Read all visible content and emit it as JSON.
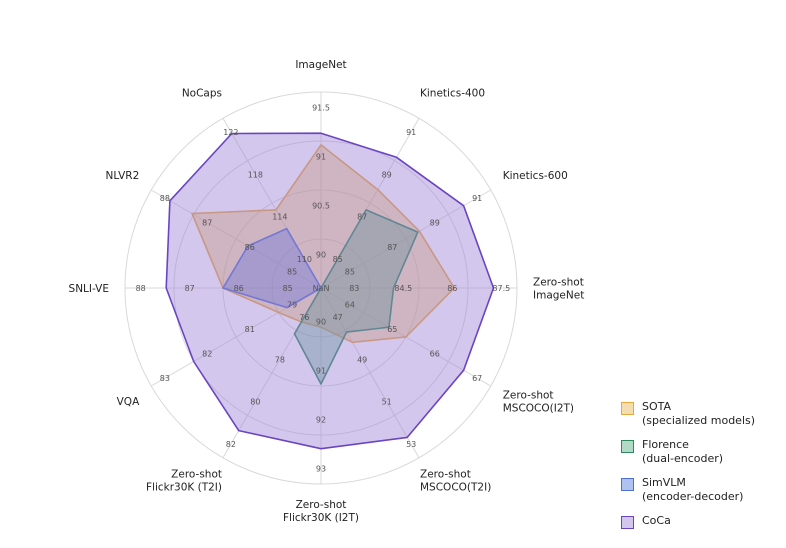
{
  "chart_data": {
    "type": "radar",
    "axes": [
      {
        "label": [
          "ImageNet"
        ],
        "ticks": [
          "90",
          "90.5",
          "91",
          "91.5"
        ]
      },
      {
        "label": [
          "Kinetics-400"
        ],
        "ticks": [
          "85",
          "87",
          "89",
          "91"
        ]
      },
      {
        "label": [
          "Kinetics-600"
        ],
        "ticks": [
          "85",
          "87",
          "89",
          "91"
        ]
      },
      {
        "label": [
          "Zero-shot",
          "ImageNet"
        ],
        "ticks": [
          "83",
          "84.5",
          "86",
          "87.5"
        ]
      },
      {
        "label": [
          "Zero-shot",
          "MSCOCO(I2T)"
        ],
        "ticks": [
          "64",
          "65",
          "66",
          "67"
        ]
      },
      {
        "label": [
          "Zero-shot",
          "MSCOCO(T2I)"
        ],
        "ticks": [
          "47",
          "49",
          "51",
          "53"
        ]
      },
      {
        "label": [
          "Zero-shot",
          "Flickr30K (I2T)"
        ],
        "ticks": [
          "90",
          "91",
          "92",
          "93"
        ]
      },
      {
        "label": [
          "Zero-shot",
          "Flickr30K (T2I)"
        ],
        "ticks": [
          "76",
          "78",
          "80",
          "82"
        ]
      },
      {
        "label": [
          "VQA"
        ],
        "ticks": [
          "79",
          "81",
          "82",
          "83"
        ]
      },
      {
        "label": [
          "SNLI-VE"
        ],
        "ticks": [
          "85",
          "86",
          "87",
          "88"
        ]
      },
      {
        "label": [
          "NLVR2"
        ],
        "ticks": [
          "85",
          "86",
          "87",
          "88"
        ]
      },
      {
        "label": [
          "NoCaps"
        ],
        "ticks": [
          "110",
          "114",
          "118",
          "122"
        ]
      }
    ],
    "center_label": "NaN",
    "series": [
      {
        "name": [
          "SOTA",
          "(specialized models)"
        ],
        "color": "#e8a93c",
        "fill": "rgba(232,169,60,0.40)",
        "values": [
          0.73,
          0.58,
          0.58,
          0.68,
          0.5,
          0.32,
          0.2,
          0.2,
          0.25,
          0.5,
          0.76,
          0.46
        ]
      },
      {
        "name": [
          "Florence",
          "(dual-encoder)"
        ],
        "color": "#2e8a5e",
        "fill": "rgba(60,160,110,0.40)",
        "values": [
          0.0,
          0.46,
          0.57,
          0.37,
          0.4,
          0.26,
          0.49,
          0.27,
          0.0,
          0.0,
          0.0,
          0.0
        ]
      },
      {
        "name": [
          "SimVLM",
          "(encoder-decoder)"
        ],
        "color": "#4f6fd3",
        "fill": "rgba(80,120,220,0.45)",
        "values": [
          0.0,
          0.0,
          0.0,
          0.0,
          0.0,
          0.0,
          0.0,
          0.0,
          0.2,
          0.5,
          0.43,
          0.35
        ]
      },
      {
        "name": [
          "CoCa"
        ],
        "color": "#6a45c2",
        "fill": "rgba(160,130,215,0.45)",
        "values": [
          0.79,
          0.77,
          0.84,
          0.88,
          0.84,
          0.88,
          0.82,
          0.84,
          0.75,
          0.79,
          0.89,
          0.91
        ]
      }
    ],
    "legend": "bottom-right"
  }
}
